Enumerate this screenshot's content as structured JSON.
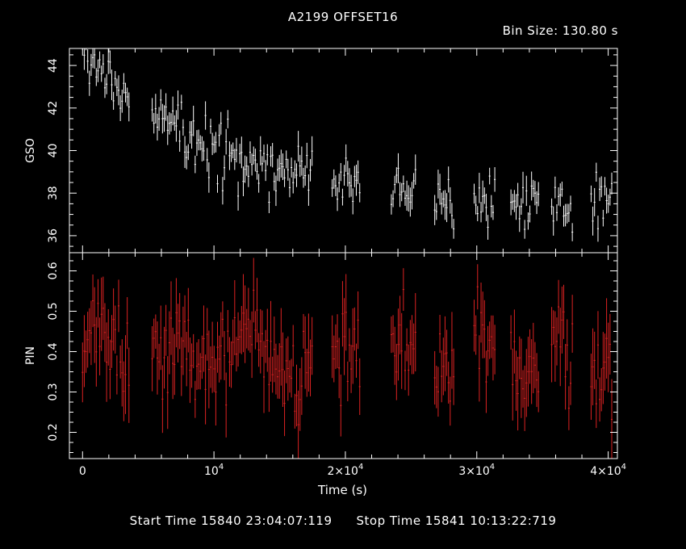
{
  "header": {
    "title": "A2199 OFFSET16",
    "bin_size": "Bin Size: 130.80 s"
  },
  "footer": {
    "start_time": "Start Time 15840 23:04:07:119",
    "stop_time": "Stop Time 15841 10:13:22:719"
  },
  "colors": {
    "gso": "#ffffff",
    "pin": "#dd2222",
    "axes": "#ffffff",
    "background": "#000000"
  },
  "chart_data": [
    {
      "type": "scatter",
      "panel": "top",
      "ylabel": "GSO",
      "xlim": [
        -1000,
        40700
      ],
      "ylim": [
        35.2,
        44.8
      ],
      "yticks": [
        36,
        38,
        40,
        42,
        44
      ],
      "ytick_labels": [
        "36",
        "38",
        "40",
        "42",
        "44"
      ],
      "x_start": 0,
      "bin_size": 130.8,
      "segments": [
        [
          0,
          3600
        ],
        [
          5300,
          17500
        ],
        [
          19000,
          21200
        ],
        [
          23500,
          25400
        ],
        [
          26800,
          28300
        ],
        [
          29800,
          31500
        ],
        [
          32600,
          34700
        ],
        [
          35700,
          37400
        ],
        [
          38700,
          40300
        ]
      ],
      "trend": {
        "start": 44.3,
        "end": 36.8,
        "decay_length": 13000
      },
      "error_range": [
        0.35,
        0.75
      ],
      "scatter_sigma": 0.7,
      "seed": 7
    },
    {
      "type": "scatter",
      "panel": "bottom",
      "ylabel": "PIN",
      "xlabel": "Time (s)",
      "xlim": [
        -1000,
        40700
      ],
      "ylim": [
        0.135,
        0.645
      ],
      "yticks": [
        0.2,
        0.3,
        0.4,
        0.5,
        0.6
      ],
      "ytick_labels": [
        "0.2",
        "0.3",
        "0.4",
        "0.5",
        "0.6"
      ],
      "xticks": [
        0,
        10000,
        20000,
        30000,
        40000
      ],
      "xtick_labels": [
        {
          "base": "0",
          "exp": ""
        },
        {
          "base": "10",
          "exp": "4"
        },
        {
          "base": "2×10",
          "exp": "4"
        },
        {
          "base": "3×10",
          "exp": "4"
        },
        {
          "base": "4×10",
          "exp": "4"
        }
      ],
      "x_start": 0,
      "bin_size": 130.8,
      "segments": [
        [
          0,
          3600
        ],
        [
          5300,
          17500
        ],
        [
          19000,
          21200
        ],
        [
          23500,
          25400
        ],
        [
          26800,
          28300
        ],
        [
          29800,
          31500
        ],
        [
          32600,
          34700
        ],
        [
          35700,
          37400
        ],
        [
          38700,
          40300
        ]
      ],
      "mean": 0.39,
      "modulation": {
        "amplitude": 0.05,
        "period": 5800,
        "phase": 0.4
      },
      "error_range": [
        0.04,
        0.1
      ],
      "scatter_sigma": 0.055,
      "seed": 23
    }
  ]
}
